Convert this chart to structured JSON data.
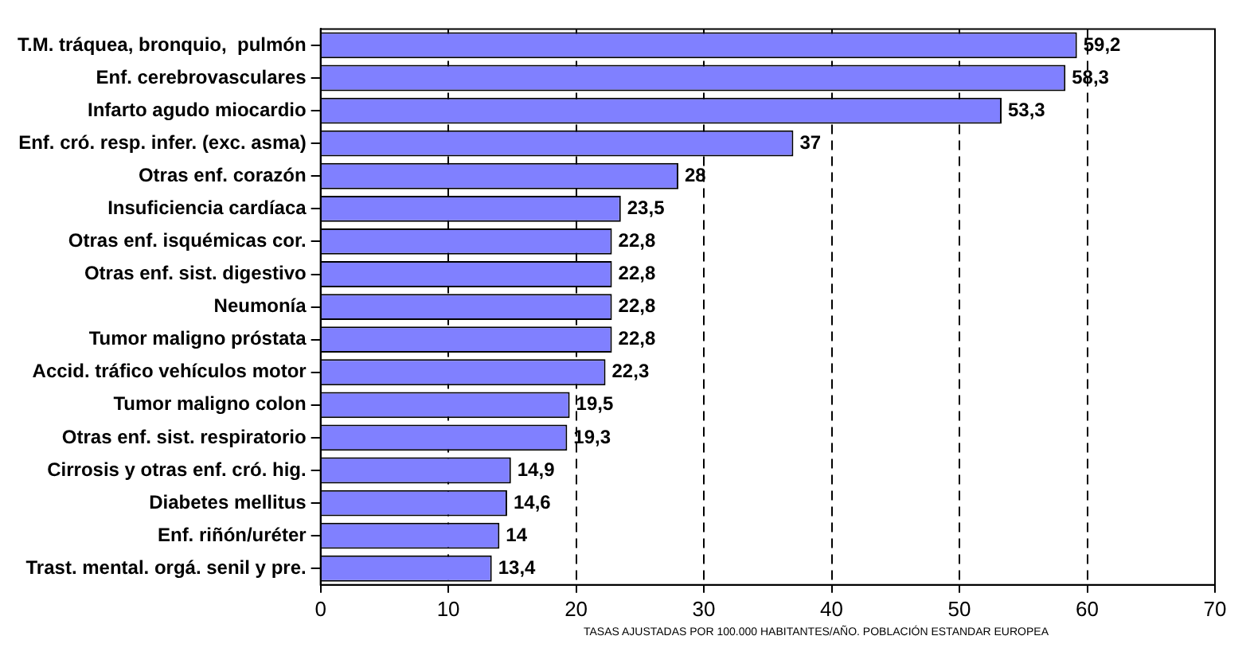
{
  "chart_data": {
    "type": "bar",
    "orientation": "horizontal",
    "categories": [
      "T.M. tráquea, bronquio,  pulmón",
      "Enf. cerebrovasculares",
      "Infarto agudo miocardio",
      "Enf. cró. resp. infer. (exc. asma)",
      "Otras enf. corazón",
      "Insuficiencia cardíaca",
      "Otras enf. isquémicas cor.",
      "Otras enf. sist. digestivo",
      "Neumonía",
      "Tumor maligno próstata",
      "Accid. tráfico vehículos motor",
      "Tumor maligno colon",
      "Otras enf. sist. respiratorio",
      "Cirrosis y otras enf. cró. hig.",
      "Diabetes mellitus",
      "Enf. riñón/uréter",
      "Trast. mental. orgá. senil y pre."
    ],
    "values": [
      59.2,
      58.3,
      53.3,
      37,
      28,
      23.5,
      22.8,
      22.8,
      22.8,
      22.8,
      22.3,
      19.5,
      19.3,
      14.9,
      14.6,
      14,
      13.4
    ],
    "value_labels": [
      "59,2",
      "58,3",
      "53,3",
      "37",
      "28",
      "23,5",
      "22,8",
      "22,8",
      "22,8",
      "22,8",
      "22,3",
      "19,5",
      "19,3",
      "14,9",
      "14,6",
      "14",
      "13,4"
    ],
    "color": "#8080ff",
    "xlim": [
      0,
      70
    ],
    "xticks": [
      0,
      10,
      20,
      30,
      40,
      50,
      60,
      70
    ],
    "grid": "x",
    "annotations": [
      "TASAS AJUSTADAS  POR 100.000 HABITANTES/AÑO. POBLACIÓN ESTANDAR EUROPEA"
    ]
  }
}
